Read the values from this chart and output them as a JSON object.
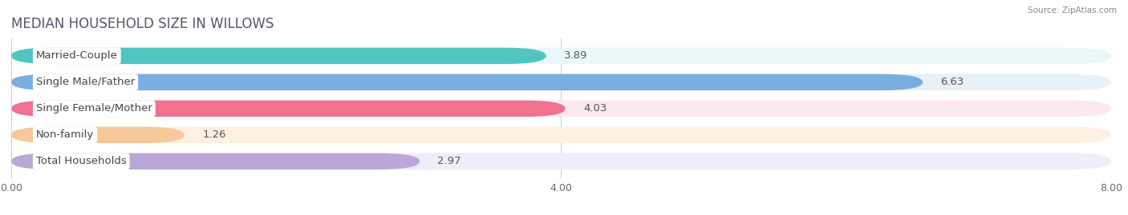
{
  "title": "MEDIAN HOUSEHOLD SIZE IN WILLOWS",
  "source": "Source: ZipAtlas.com",
  "categories": [
    "Married-Couple",
    "Single Male/Father",
    "Single Female/Mother",
    "Non-family",
    "Total Households"
  ],
  "values": [
    3.89,
    6.63,
    4.03,
    1.26,
    2.97
  ],
  "bar_colors": [
    "#52c5c0",
    "#7aaee0",
    "#f07090",
    "#f5c99a",
    "#b8a8d8"
  ],
  "bar_bg_colors": [
    "#e8f7f7",
    "#e8f0f8",
    "#fce8f0",
    "#fdf0e2",
    "#f0ecf8"
  ],
  "xlim": [
    0,
    8.0
  ],
  "xticks": [
    0.0,
    4.0,
    8.0
  ],
  "xtick_labels": [
    "0.00",
    "4.00",
    "8.00"
  ],
  "label_fontsize": 9.5,
  "value_fontsize": 9.5,
  "title_fontsize": 12,
  "background_color": "#ffffff"
}
